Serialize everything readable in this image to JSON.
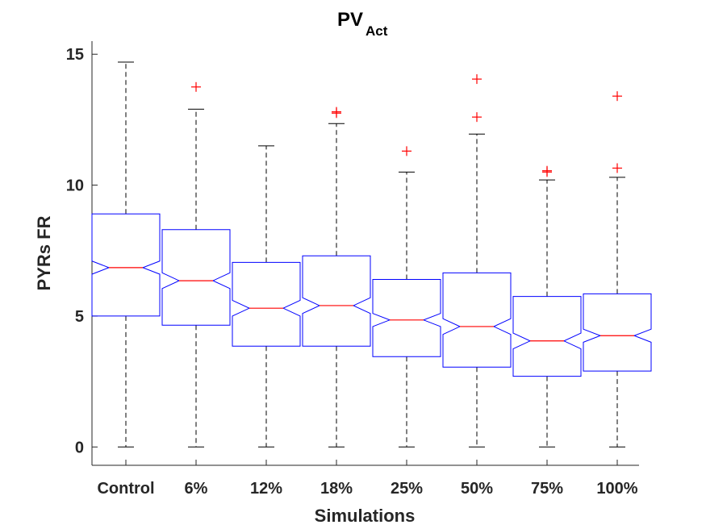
{
  "chart_data": {
    "type": "boxplot",
    "title": "PV",
    "title_subscript": "Act",
    "xlabel": "Simulations",
    "ylabel": "PYRs FR",
    "ylim": [
      -0.7,
      15.5
    ],
    "yticks": [
      0,
      5,
      10,
      15
    ],
    "notched": true,
    "grid": false,
    "colors": {
      "box": "#0000ff",
      "median": "#ff0000",
      "whisker": "#000000",
      "outlier": "#ff0000",
      "axis": "#262626"
    },
    "categories": [
      "Control",
      "6%",
      "12%",
      "18%",
      "25%",
      "50%",
      "75%",
      "100%"
    ],
    "boxes": [
      {
        "label": "Control",
        "whisker_low": 0,
        "q1": 5.0,
        "median": 6.85,
        "q3": 8.9,
        "whisker_high": 14.7,
        "notch_low": 6.6,
        "notch_high": 7.1,
        "outliers": []
      },
      {
        "label": "6%",
        "whisker_low": 0,
        "q1": 4.65,
        "median": 6.35,
        "q3": 8.3,
        "whisker_high": 12.9,
        "notch_low": 6.05,
        "notch_high": 6.65,
        "outliers": [
          13.75
        ]
      },
      {
        "label": "12%",
        "whisker_low": 0,
        "q1": 3.85,
        "median": 5.3,
        "q3": 7.05,
        "whisker_high": 11.5,
        "notch_low": 5.0,
        "notch_high": 5.6,
        "outliers": []
      },
      {
        "label": "18%",
        "whisker_low": 0,
        "q1": 3.85,
        "median": 5.4,
        "q3": 7.3,
        "whisker_high": 12.35,
        "notch_low": 5.1,
        "notch_high": 5.7,
        "outliers": [
          12.75,
          12.8
        ]
      },
      {
        "label": "25%",
        "whisker_low": 0,
        "q1": 3.45,
        "median": 4.85,
        "q3": 6.4,
        "whisker_high": 10.5,
        "notch_low": 4.6,
        "notch_high": 5.1,
        "outliers": [
          11.3
        ]
      },
      {
        "label": "50%",
        "whisker_low": 0,
        "q1": 3.05,
        "median": 4.6,
        "q3": 6.65,
        "whisker_high": 11.95,
        "notch_low": 4.3,
        "notch_high": 4.9,
        "outliers": [
          12.6,
          14.05
        ]
      },
      {
        "label": "75%",
        "whisker_low": 0,
        "q1": 2.7,
        "median": 4.05,
        "q3": 5.75,
        "whisker_high": 10.2,
        "notch_low": 3.75,
        "notch_high": 4.35,
        "outliers": [
          10.5,
          10.55
        ]
      },
      {
        "label": "100%",
        "whisker_low": 0,
        "q1": 2.9,
        "median": 4.25,
        "q3": 5.85,
        "whisker_high": 10.3,
        "notch_low": 4.0,
        "notch_high": 4.5,
        "outliers": [
          10.65,
          13.4
        ]
      }
    ]
  }
}
